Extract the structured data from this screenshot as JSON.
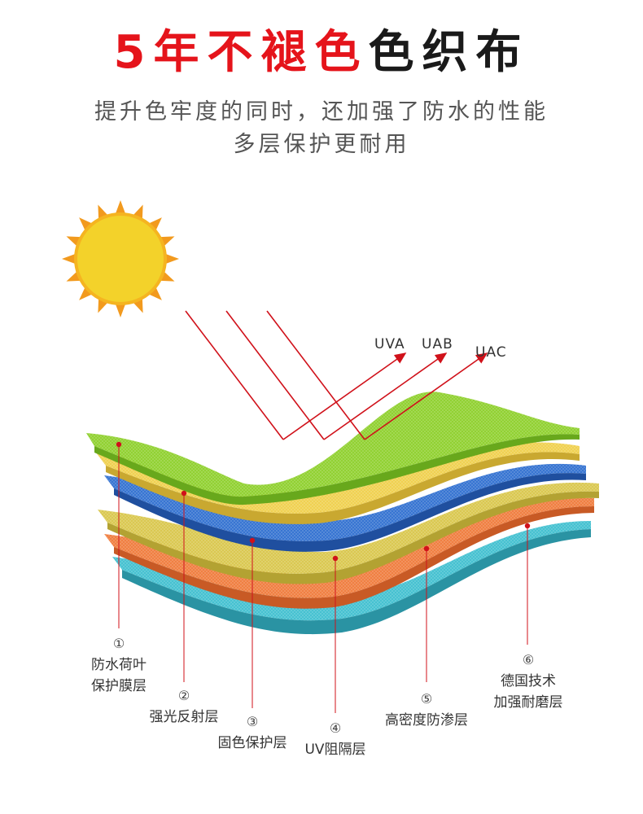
{
  "title": {
    "red": "5年不褪色",
    "black": "色织布"
  },
  "subtitle": {
    "line1": "提升色牢度的同时，还加强了防水的性能",
    "line2": "多层保护更耐用"
  },
  "rays": [
    "UVA",
    "UAB",
    "UAC"
  ],
  "layers": [
    {
      "num": "①",
      "line1": "防水荷叶",
      "line2": "保护膜层",
      "color": "#8dcf2a"
    },
    {
      "num": "②",
      "line1": "强光反射层",
      "line2": "",
      "color": "#f0cf4a"
    },
    {
      "num": "③",
      "line1": "固色保护层",
      "line2": "",
      "color": "#2f6fd0"
    },
    {
      "num": "④",
      "line1": "UV阻隔层",
      "line2": "",
      "color": "#d8c64a"
    },
    {
      "num": "⑤",
      "line1": "高密度防渗层",
      "line2": "",
      "color": "#f07a3a"
    },
    {
      "num": "⑥",
      "line1": "德国技术",
      "line2": "加强耐磨层",
      "color": "#3fbfcf"
    }
  ],
  "colors": {
    "accent": "#e5141b",
    "sun": "#f3d22a",
    "sun_rays": "#f29a1e"
  },
  "icons": {
    "sun": "sun-icon"
  }
}
